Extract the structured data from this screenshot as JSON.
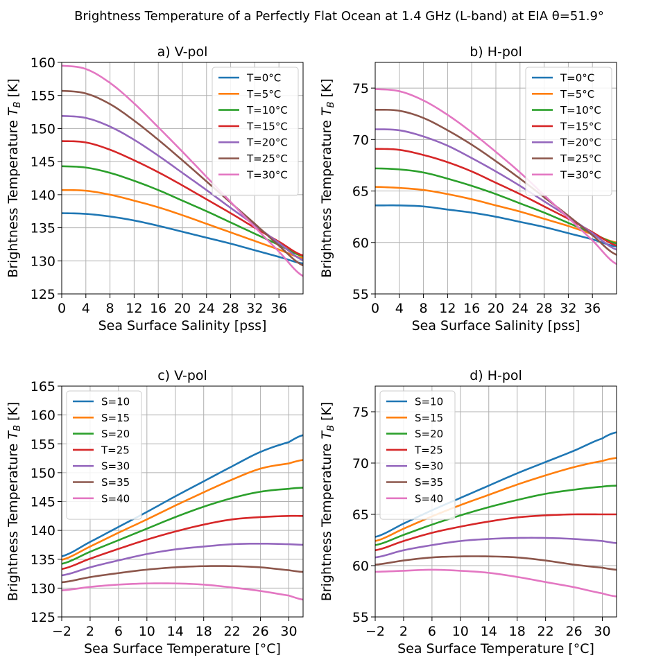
{
  "figure_title": "Brightness Temperature of a Perfectly Flat Ocean at 1.4 GHz (L-band) at EIA θ=51.9°",
  "colors": [
    "#1f77b4",
    "#ff7f0e",
    "#2ca02c",
    "#d62728",
    "#9467bd",
    "#8c564b",
    "#e377c2"
  ],
  "chart_data": [
    {
      "type": "line",
      "title": "a) V-pol",
      "xlabel": "Sea Surface Salinity [pss]",
      "ylabel": "Brightness Temperature T_B [K]",
      "xlim": [
        0,
        40
      ],
      "ylim": [
        125,
        160
      ],
      "xticks": [
        0,
        4,
        8,
        12,
        16,
        20,
        24,
        28,
        32,
        36
      ],
      "yticks": [
        125,
        130,
        135,
        140,
        145,
        150,
        155,
        160
      ],
      "grid": true,
      "legend_position": "top-right",
      "x": [
        0,
        4,
        8,
        12,
        16,
        20,
        24,
        28,
        32,
        36,
        40
      ],
      "series": [
        {
          "name": "T=0°C",
          "values": [
            137.2,
            137.1,
            136.7,
            136.1,
            135.3,
            134.4,
            133.5,
            132.6,
            131.6,
            130.6,
            129.6
          ]
        },
        {
          "name": "T=5°C",
          "values": [
            140.7,
            140.6,
            140.0,
            139.1,
            138.1,
            136.9,
            135.6,
            134.3,
            133.0,
            131.7,
            130.4
          ]
        },
        {
          "name": "T=10°C",
          "values": [
            144.3,
            144.1,
            143.3,
            142.1,
            140.7,
            139.1,
            137.5,
            135.8,
            134.1,
            132.4,
            130.7
          ]
        },
        {
          "name": "T=15°C",
          "values": [
            148.1,
            147.9,
            146.8,
            145.2,
            143.4,
            141.4,
            139.3,
            137.2,
            135.0,
            132.9,
            130.8
          ]
        },
        {
          "name": "T=20°C",
          "values": [
            151.9,
            151.6,
            150.3,
            148.3,
            145.9,
            143.3,
            140.7,
            138.0,
            135.4,
            132.7,
            130.1
          ]
        },
        {
          "name": "T=25°C",
          "values": [
            155.7,
            155.3,
            153.7,
            151.2,
            148.3,
            145.2,
            142.0,
            138.8,
            135.6,
            132.3,
            129.3
          ]
        },
        {
          "name": "T=30°C",
          "values": [
            159.5,
            159.0,
            156.9,
            153.8,
            150.2,
            146.5,
            142.7,
            138.9,
            135.1,
            131.4,
            127.7
          ]
        }
      ]
    },
    {
      "type": "line",
      "title": "b) H-pol",
      "xlabel": "Sea Surface Salinity [pss]",
      "ylabel": "Brightness Temperature T_B [K]",
      "xlim": [
        0,
        40
      ],
      "ylim": [
        55,
        77.5
      ],
      "xticks": [
        0,
        4,
        8,
        12,
        16,
        20,
        24,
        28,
        32,
        36
      ],
      "yticks": [
        55,
        60,
        65,
        70,
        75
      ],
      "grid": true,
      "legend_position": "top-right",
      "x": [
        0,
        4,
        8,
        12,
        16,
        20,
        24,
        28,
        32,
        36,
        40
      ],
      "series": [
        {
          "name": "T=0°C",
          "values": [
            63.6,
            63.6,
            63.5,
            63.2,
            62.9,
            62.5,
            62.0,
            61.5,
            60.9,
            60.3,
            59.6
          ]
        },
        {
          "name": "T=5°C",
          "values": [
            65.4,
            65.3,
            65.1,
            64.7,
            64.2,
            63.6,
            63.0,
            62.3,
            61.6,
            60.8,
            60.0
          ]
        },
        {
          "name": "T=10°C",
          "values": [
            67.2,
            67.1,
            66.8,
            66.2,
            65.5,
            64.7,
            63.8,
            62.9,
            61.9,
            60.9,
            59.9
          ]
        },
        {
          "name": "T=15°C",
          "values": [
            69.1,
            69.0,
            68.5,
            67.8,
            66.9,
            65.8,
            64.7,
            63.5,
            62.3,
            61.0,
            59.7
          ]
        },
        {
          "name": "T=20°C",
          "values": [
            71.0,
            70.9,
            70.3,
            69.4,
            68.2,
            66.9,
            65.5,
            64.0,
            62.5,
            60.9,
            59.3
          ]
        },
        {
          "name": "T=25°C",
          "values": [
            72.9,
            72.8,
            72.1,
            70.9,
            69.5,
            67.9,
            66.2,
            64.4,
            62.6,
            60.7,
            58.8
          ]
        },
        {
          "name": "T=30°C",
          "values": [
            74.9,
            74.7,
            73.8,
            72.4,
            70.7,
            68.8,
            66.8,
            64.6,
            62.4,
            60.2,
            57.9
          ]
        }
      ]
    },
    {
      "type": "line",
      "title": "c) V-pol",
      "xlabel": "Sea Surface Temperature  [°C]",
      "ylabel": "Brightness Temperature T_B [K]",
      "xlim": [
        -2,
        32
      ],
      "ylim": [
        125,
        165
      ],
      "xticks": [
        -2,
        2,
        6,
        10,
        14,
        18,
        22,
        26,
        30
      ],
      "xtick_labels": [
        "−2",
        "2",
        "6",
        "10",
        "14",
        "18",
        "22",
        "26",
        "30"
      ],
      "yticks": [
        125,
        130,
        135,
        140,
        145,
        150,
        155,
        160,
        165
      ],
      "grid": true,
      "legend_position": "top-left",
      "x": [
        -2,
        2,
        6,
        10,
        14,
        18,
        22,
        26,
        30,
        32
      ],
      "series": [
        {
          "name": "S=10",
          "values": [
            135.5,
            138.0,
            140.6,
            143.2,
            145.9,
            148.5,
            151.1,
            153.6,
            155.3,
            156.5
          ]
        },
        {
          "name": "S=15",
          "values": [
            134.9,
            137.2,
            139.6,
            141.9,
            144.3,
            146.6,
            148.8,
            150.7,
            151.6,
            152.2
          ]
        },
        {
          "name": "S=20",
          "values": [
            134.2,
            136.3,
            138.3,
            140.3,
            142.3,
            144.1,
            145.6,
            146.7,
            147.2,
            147.4
          ]
        },
        {
          "name": "T=25",
          "values": [
            133.3,
            135.1,
            136.8,
            138.4,
            139.8,
            141.0,
            141.9,
            142.3,
            142.5,
            142.5
          ]
        },
        {
          "name": "S=30",
          "values": [
            132.2,
            133.6,
            134.8,
            135.9,
            136.7,
            137.2,
            137.6,
            137.7,
            137.6,
            137.5
          ]
        },
        {
          "name": "S=35",
          "values": [
            131.0,
            131.9,
            132.6,
            133.2,
            133.6,
            133.8,
            133.8,
            133.6,
            133.1,
            132.8
          ]
        },
        {
          "name": "S=40",
          "values": [
            129.6,
            130.2,
            130.6,
            130.8,
            130.8,
            130.6,
            130.1,
            129.5,
            128.7,
            128.0
          ]
        }
      ]
    },
    {
      "type": "line",
      "title": "d) H-pol",
      "xlabel": "Sea Surface Temperature  [°C]",
      "ylabel": "Brightness Temperature T_B [K]",
      "xlim": [
        -2,
        32
      ],
      "ylim": [
        55,
        77.5
      ],
      "xticks": [
        -2,
        2,
        6,
        10,
        14,
        18,
        22,
        26,
        30
      ],
      "xtick_labels": [
        "−2",
        "2",
        "6",
        "10",
        "14",
        "18",
        "22",
        "26",
        "30"
      ],
      "yticks": [
        55,
        60,
        65,
        70,
        75
      ],
      "grid": true,
      "legend_position": "top-left",
      "x": [
        -2,
        2,
        6,
        10,
        14,
        18,
        22,
        26,
        30,
        32
      ],
      "series": [
        {
          "name": "S=10",
          "values": [
            62.8,
            64.1,
            65.4,
            66.6,
            67.8,
            69.0,
            70.1,
            71.2,
            72.4,
            73.0
          ]
        },
        {
          "name": "S=15",
          "values": [
            62.4,
            63.6,
            64.8,
            65.9,
            66.9,
            67.9,
            68.8,
            69.6,
            70.2,
            70.5
          ]
        },
        {
          "name": "S=20",
          "values": [
            62.0,
            63.0,
            64.0,
            64.9,
            65.7,
            66.4,
            67.0,
            67.4,
            67.7,
            67.8
          ]
        },
        {
          "name": "T=25",
          "values": [
            61.5,
            62.4,
            63.2,
            63.8,
            64.3,
            64.7,
            64.9,
            65.0,
            65.0,
            65.0
          ]
        },
        {
          "name": "S=30",
          "values": [
            60.8,
            61.5,
            62.0,
            62.4,
            62.6,
            62.7,
            62.7,
            62.6,
            62.4,
            62.2
          ]
        },
        {
          "name": "S=35",
          "values": [
            60.1,
            60.5,
            60.8,
            60.9,
            60.9,
            60.8,
            60.5,
            60.1,
            59.8,
            59.6
          ]
        },
        {
          "name": "S=40",
          "values": [
            59.4,
            59.5,
            59.6,
            59.5,
            59.3,
            58.9,
            58.4,
            57.9,
            57.3,
            57.0
          ]
        }
      ]
    }
  ]
}
